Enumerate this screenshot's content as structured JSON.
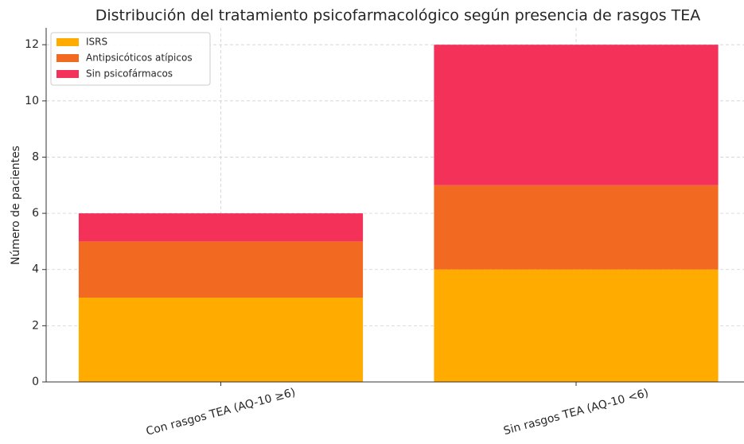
{
  "chart_data": {
    "type": "bar",
    "stacked": true,
    "title": "Distribución del tratamiento psicofarmacológico según presencia de rasgos TEA",
    "ylabel": "Número de pacientes",
    "categories": [
      "Con rasgos TEA (AQ-10 ≥6)",
      "Sin rasgos TEA (AQ-10 <6)"
    ],
    "series": [
      {
        "name": "ISRS",
        "color": "#ffab00",
        "values": [
          3,
          4
        ]
      },
      {
        "name": "Antipsicóticos atípicos",
        "color": "#f26a21",
        "values": [
          2,
          3
        ]
      },
      {
        "name": "Sin psicofármacos",
        "color": "#f43259",
        "values": [
          1,
          5
        ]
      }
    ],
    "ylim": [
      0,
      12.6
    ],
    "yticks": [
      0,
      2,
      4,
      6,
      8,
      10,
      12
    ],
    "grid": true,
    "legend": "upper left"
  }
}
